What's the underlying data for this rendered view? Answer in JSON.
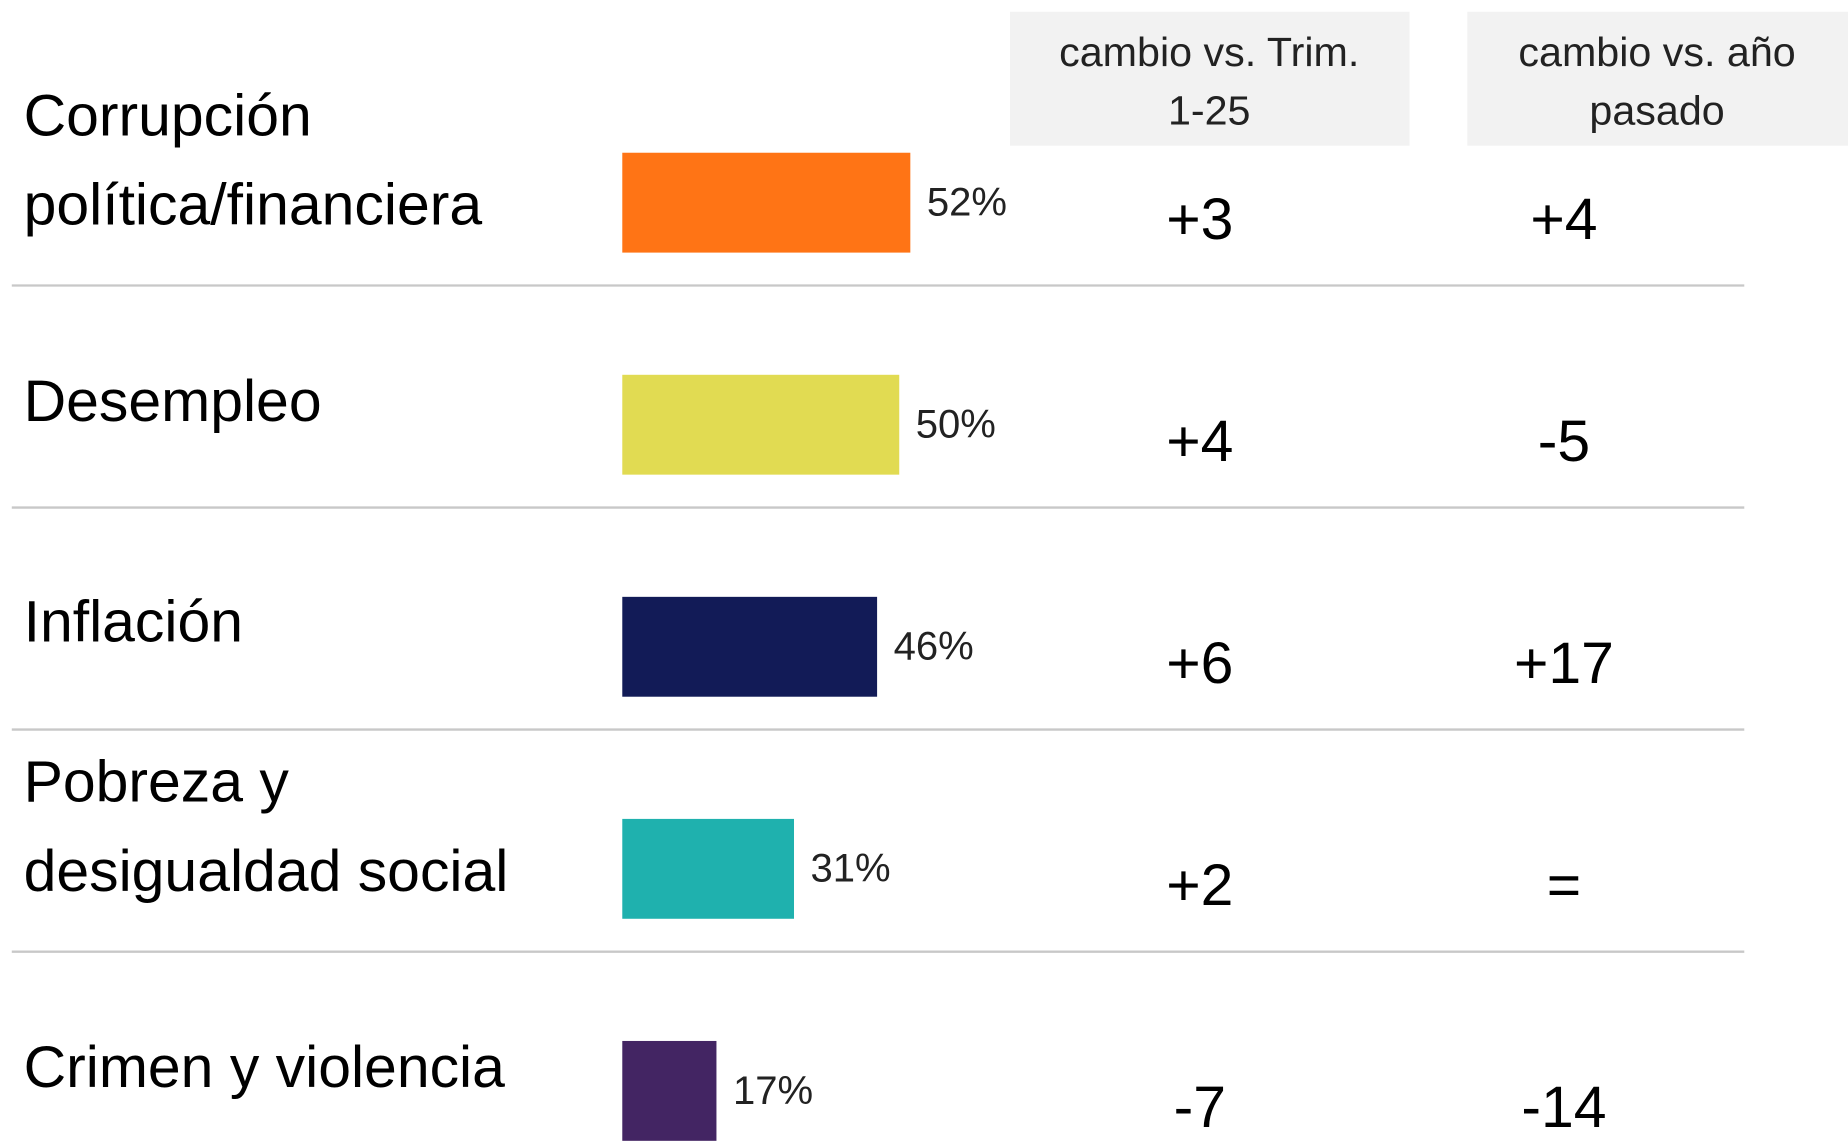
{
  "chart_data": {
    "type": "bar",
    "orientation": "horizontal",
    "categories": [
      [
        "Corrupción",
        "política/financiera"
      ],
      [
        "Desempleo"
      ],
      [
        "Inflación"
      ],
      [
        "Pobreza y",
        "desigualdad social"
      ],
      [
        "Crimen y violencia"
      ]
    ],
    "values": [
      52,
      50,
      46,
      31,
      17
    ],
    "value_labels": [
      "52%",
      "50%",
      "46%",
      "31%",
      "17%"
    ],
    "colors": [
      "#ff7415",
      "#e1db52",
      "#121b57",
      "#1fb1ae",
      "#432563"
    ],
    "columns": [
      {
        "header": [
          "cambio vs.  Trim.",
          "1-25"
        ],
        "values": [
          "+3",
          "+4",
          "+6",
          "+2",
          "-7"
        ]
      },
      {
        "header": [
          "cambio vs. año",
          "pasado"
        ],
        "values": [
          "+4",
          "-5",
          "+17",
          "=",
          "-14"
        ]
      }
    ]
  }
}
